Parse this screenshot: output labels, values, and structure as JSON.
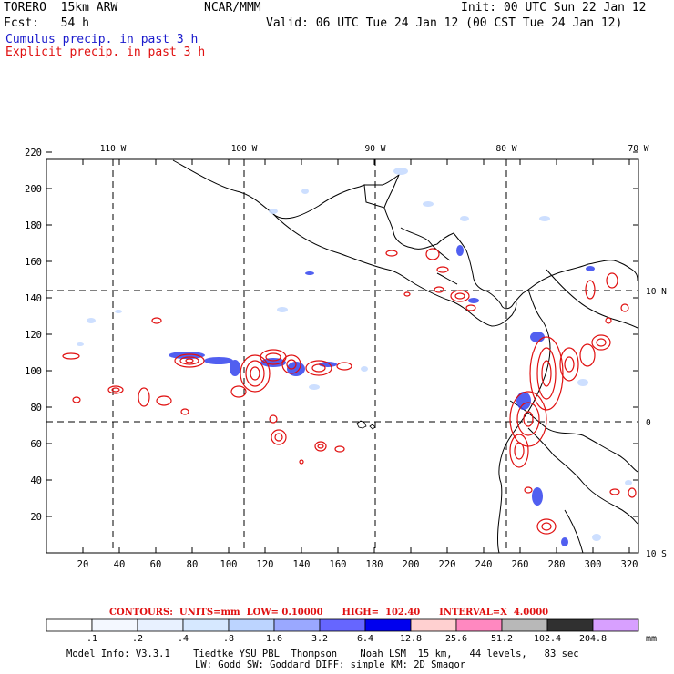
{
  "header": {
    "model": "TORERO  15km ARW",
    "org": "NCAR/MMM",
    "init": "Init: 00 UTC Sun 22 Jan 12",
    "fcst": "Fcst:   54 h",
    "valid": "Valid: 06 UTC Tue 24 Jan 12 (00 CST Tue 24 Jan 12)",
    "legend_cumulus": "Cumulus precip. in past 3 h",
    "legend_explicit": "Explicit precip. in past 3 h"
  },
  "map": {
    "lon_labels": [
      "110 W",
      "100 W",
      "90 W",
      "80 W",
      "70 W"
    ],
    "lat_labels": [
      "10 N",
      "0",
      "10 S"
    ],
    "x_ticks": [
      "20",
      "40",
      "60",
      "80",
      "100",
      "120",
      "140",
      "160",
      "180",
      "200",
      "220",
      "240",
      "260",
      "280",
      "300",
      "320"
    ],
    "y_ticks": [
      "220",
      "200",
      "180",
      "160",
      "140",
      "120",
      "100",
      "80",
      "60",
      "40",
      "20"
    ],
    "grid_x_index": [
      40,
      112,
      184,
      260
    ],
    "grid_y_index": [
      76,
      150
    ]
  },
  "contour_info": {
    "text": "CONTOURS:  UNITS=mm  LOW= 0.10000      HIGH=  102.40      INTERVAL=X  4.0000"
  },
  "colorbar": {
    "labels": [
      ".1",
      ".2",
      ".4",
      ".8",
      "1.6",
      "3.2",
      "6.4",
      "12.8",
      "25.6",
      "51.2",
      "102.4",
      "204.8"
    ],
    "unit": "mm",
    "colors": [
      "#ffffff",
      "#f4f8ff",
      "#e8f1ff",
      "#d6e8ff",
      "#bcd4ff",
      "#9aa8ff",
      "#6666ff",
      "#0000ee",
      "#ffd0d0",
      "#ff88c0",
      "#b8b8b8",
      "#303030",
      "#d8a0ff"
    ]
  },
  "footer": {
    "line1": "Model Info: V3.3.1    Tiedtke YSU PBL  Thompson    Noah LSM  15 km,   44 levels,   83 sec",
    "line2": "LW: Godd SW: Goddard DIFF: simple KM: 2D Smagor"
  }
}
